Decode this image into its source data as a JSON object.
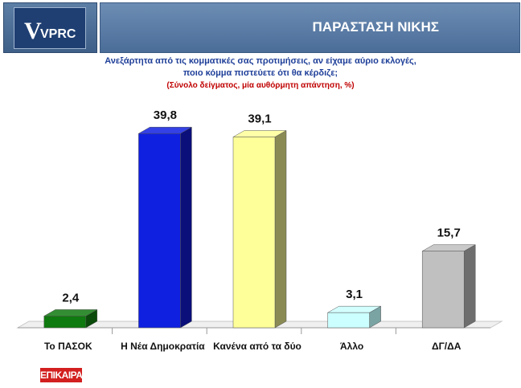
{
  "header": {
    "logo_text": "VPRC",
    "title": "ΠΑΡΑΣΤΑΣΗ ΝΙΚΗΣ"
  },
  "question": {
    "line1": "Ανεξάρτητα από τις κομματικές σας προτιμήσεις, αν είχαμε αύριο εκλογές,",
    "line2": "ποιο κόμμα πιστεύετε ότι θα κέρδιζε;",
    "note": "(Σύνολο δείγματος, μία αυθόρμητη απάντηση, %)"
  },
  "chart_data": {
    "type": "bar",
    "categories": [
      "Το ΠΑΣΟΚ",
      "Η Νέα Δημοκρατία",
      "Κανένα από τα δύο",
      "Άλλο",
      "ΔΓ/ΔΑ"
    ],
    "values": [
      2.4,
      39.8,
      39.1,
      3.1,
      15.7
    ],
    "value_labels": [
      "2,4",
      "39,8",
      "39,1",
      "3,1",
      "15,7"
    ],
    "colors": [
      "#0f7a0f",
      "#1020e0",
      "#ffff99",
      "#ccffff",
      "#c0c0c0"
    ],
    "side_colors": [
      "#0a4a0a",
      "#0a0f7a",
      "#8a8a55",
      "#7aa3a3",
      "#6e6e6e"
    ],
    "ylim": [
      0,
      40
    ],
    "grid": false,
    "legend": "none"
  },
  "footer": {
    "brand": "ΕΠΙΚΑΙΡΑ"
  }
}
